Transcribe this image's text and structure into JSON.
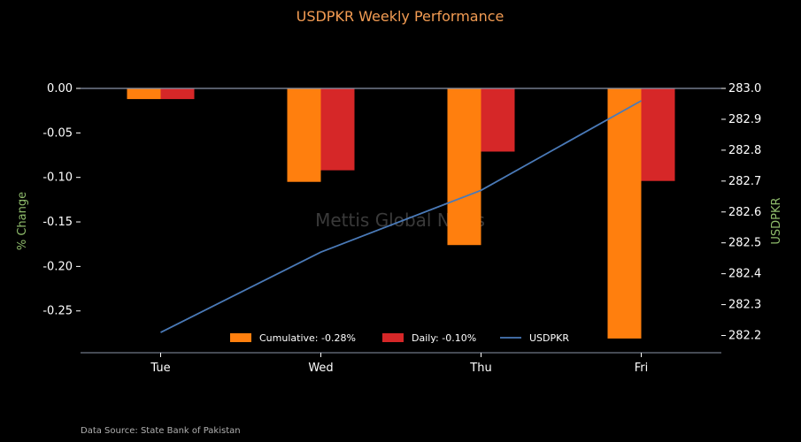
{
  "chart_data": {
    "type": "bar",
    "title": "USDPKR Weekly Performance",
    "categories": [
      "Tue",
      "Wed",
      "Thu",
      "Fri"
    ],
    "series": [
      {
        "name": "Cumulative",
        "legend_label": "Cumulative: -0.28%",
        "kind": "bar",
        "axis": "left",
        "color": "#ff7f0e",
        "values": [
          -0.012,
          -0.105,
          -0.176,
          -0.281
        ]
      },
      {
        "name": "Daily",
        "legend_label": "Daily: -0.10%",
        "kind": "bar",
        "axis": "left",
        "color": "#d62728",
        "values": [
          -0.012,
          -0.092,
          -0.071,
          -0.104
        ]
      },
      {
        "name": "USDPKR",
        "legend_label": "USDPKR",
        "kind": "line",
        "axis": "right",
        "color": "#4a7ab8",
        "values": [
          282.21,
          282.47,
          282.67,
          282.96
        ]
      }
    ],
    "ylabel": "% Change",
    "y2label": "USDPKR",
    "ylim": [
      -0.29,
      0.0
    ],
    "yticks": [
      "0.00",
      "-0.05",
      "-0.10",
      "-0.15",
      "-0.20",
      "-0.25"
    ],
    "y2lim": [
      282.17,
      283.0
    ],
    "y2ticks": [
      "283.0",
      "282.9",
      "282.8",
      "282.7",
      "282.6",
      "282.5",
      "282.4",
      "282.3",
      "282.2"
    ],
    "legend_position": "bottom-center",
    "watermark": "Mettis Global News",
    "source_note": "Data Source: State Bank of Pakistan",
    "colors": {
      "title": "#f39c53",
      "axis_label": "#8fbc6b",
      "axis_line": "#8a93a8",
      "zero_line": "#8a93a8",
      "watermark": "#3a3a3a",
      "source": "#b0b0b0"
    }
  }
}
